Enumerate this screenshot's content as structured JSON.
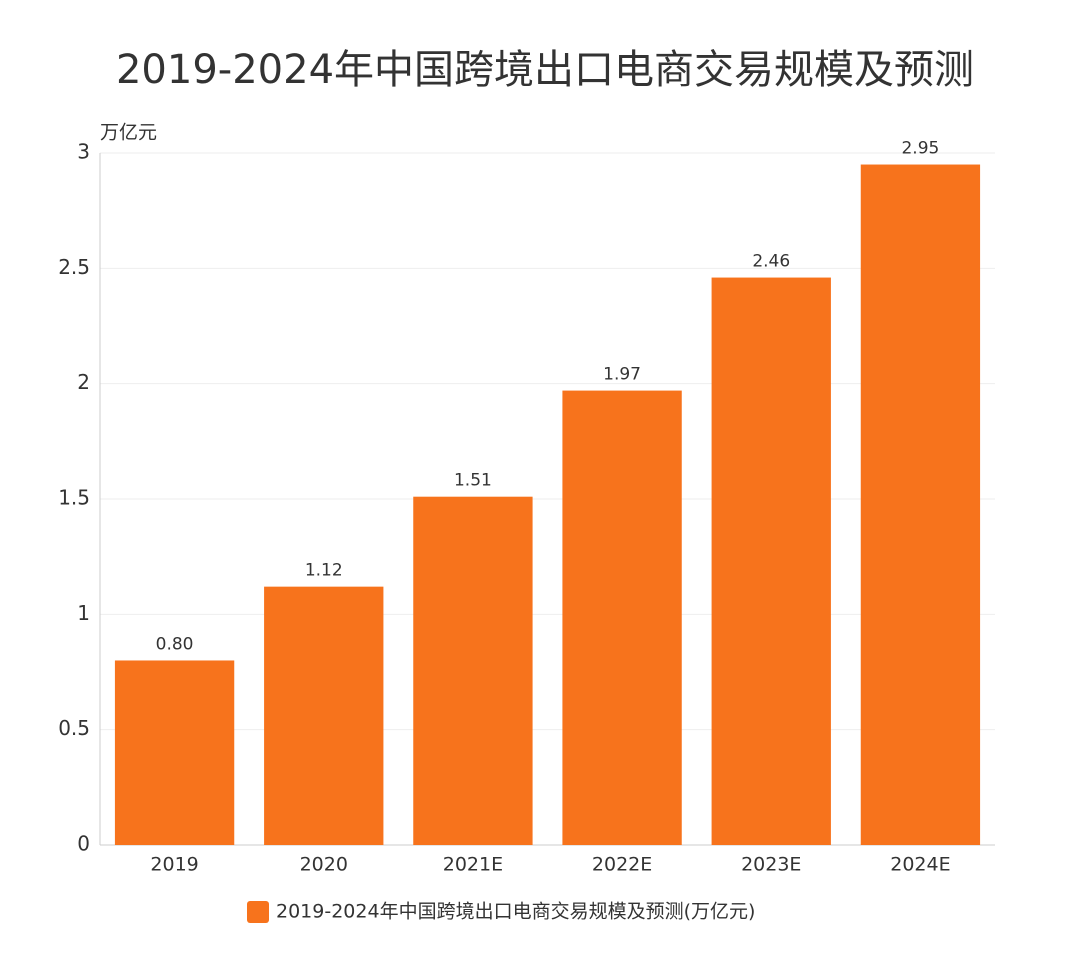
{
  "chart_data": {
    "type": "bar",
    "title": "2019-2024年中国跨境出口电商交易规模及预测",
    "y_label": "万亿元",
    "categories": [
      "2019",
      "2020",
      "2021E",
      "2022E",
      "2023E",
      "2024E"
    ],
    "series": [
      {
        "name": "2019-2024年中国跨境出口电商交易规模及预测(万亿元)",
        "color": "#f7731c",
        "values": [
          0.8,
          1.12,
          1.51,
          1.97,
          2.46,
          2.95
        ],
        "value_labels": [
          "0.80",
          "1.12",
          "1.51",
          "1.97",
          "2.46",
          "2.95"
        ]
      }
    ],
    "ylim": [
      0,
      3
    ],
    "yticks": [
      0,
      0.5,
      1,
      1.5,
      2,
      2.5,
      3
    ],
    "grid": true
  }
}
